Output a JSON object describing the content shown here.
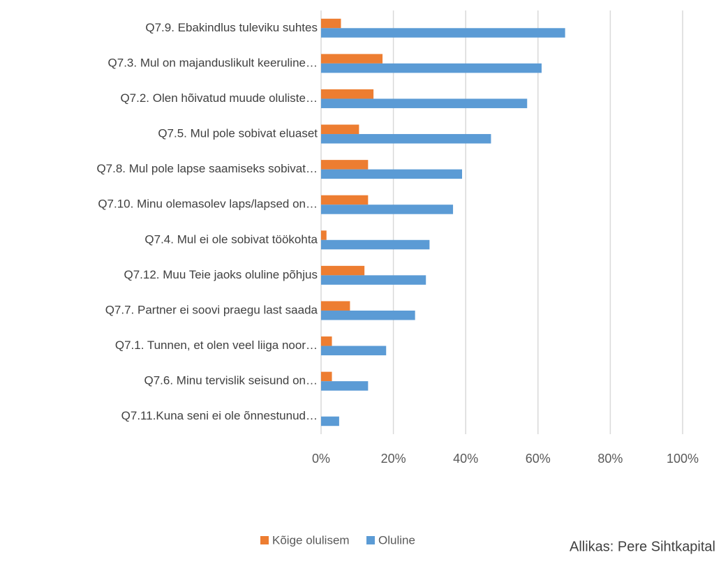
{
  "chart_data": {
    "type": "hbar",
    "categories": [
      "Q7.9. Ebakindlus tuleviku suhtes",
      "Q7.3. Mul on majanduslikult keeruline…",
      "Q7.2. Olen hõivatud muude oluliste…",
      "Q7.5. Mul pole sobivat eluaset",
      "Q7.8. Mul pole lapse saamiseks sobivat…",
      "Q7.10. Minu olemasolev laps/lapsed on…",
      "Q7.4. Mul ei ole sobivat töökohta",
      "Q7.12. Muu Teie jaoks oluline põhjus",
      "Q7.7. Partner ei soovi praegu last saada",
      "Q7.1. Tunnen, et olen veel liiga noor…",
      "Q7.6. Minu tervislik seisund on…",
      "Q7.11.Kuna seni ei ole õnnestunud…"
    ],
    "series": [
      {
        "name": "Kõige olulisem",
        "color": "#ed7d31",
        "values": [
          5.5,
          17,
          14.5,
          10.5,
          13,
          13,
          1.5,
          12,
          8,
          3,
          3,
          0
        ]
      },
      {
        "name": "Oluline",
        "color": "#5b9bd5",
        "values": [
          67.5,
          61,
          57,
          47,
          39,
          36.5,
          30,
          29,
          26,
          18,
          13,
          5
        ]
      }
    ],
    "xlim": [
      0,
      100
    ],
    "xticks": [
      {
        "value": 0,
        "label": "0%"
      },
      {
        "value": 20,
        "label": "20%"
      },
      {
        "value": 40,
        "label": "40%"
      },
      {
        "value": 60,
        "label": "60%"
      },
      {
        "value": 80,
        "label": "80%"
      },
      {
        "value": 100,
        "label": "100%"
      }
    ],
    "grid": true,
    "legend": "bottom",
    "annotation": "Allikas: Pere Sihtkapital"
  }
}
